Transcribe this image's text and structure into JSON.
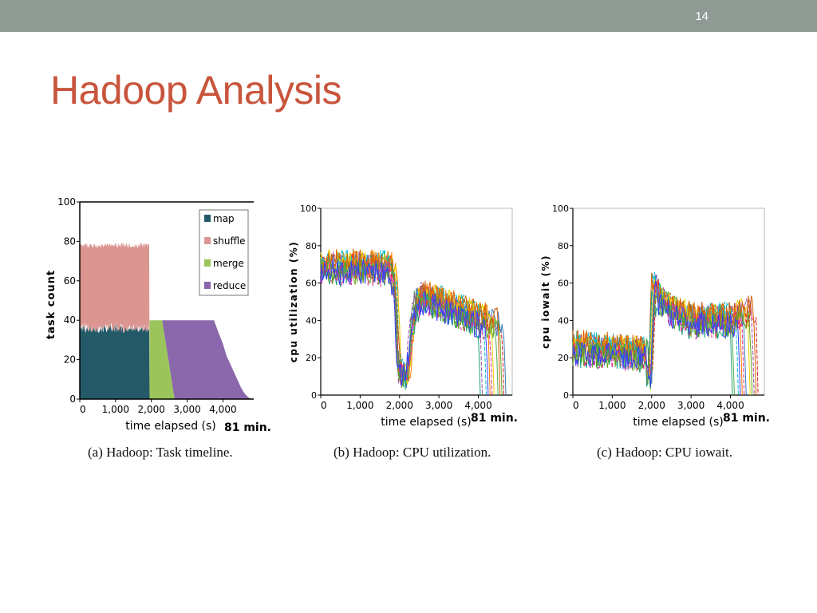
{
  "slide": {
    "number": "14",
    "title": "Hadoop Analysis"
  },
  "colors": {
    "topbar": "#8f9a94",
    "title": "#c8553c",
    "map": "#245a68",
    "shuffle": "#dc9692",
    "merge": "#9bc55a",
    "reduce": "#8a68ab"
  },
  "chart_data": [
    {
      "type": "area",
      "caption": "(a) Hadoop: Task timeline.",
      "xlabel": "time elapsed (s)",
      "ylabel": "task count",
      "x_end_note": "81 min.",
      "xlim": [
        0,
        4860
      ],
      "ylim": [
        0,
        100
      ],
      "x_ticks": [
        "0",
        "1,000",
        "2,000",
        "3,000",
        "4,000"
      ],
      "x_tick_values": [
        0,
        1000,
        2000,
        3000,
        4000
      ],
      "y_ticks": [
        "0",
        "20",
        "40",
        "60",
        "80",
        "100"
      ],
      "y_tick_values": [
        0,
        20,
        40,
        60,
        80,
        100
      ],
      "legend_position": "top-right",
      "series": [
        {
          "name": "map",
          "color": "#245a68",
          "bands": [
            [
              0,
              0,
              36
            ],
            [
              1940,
              0,
              36
            ],
            [
              1950,
              0,
              0
            ]
          ]
        },
        {
          "name": "shuffle",
          "color": "#dc9692",
          "bands": [
            [
              0,
              36,
              78
            ],
            [
              1940,
              36,
              78
            ],
            [
              1950,
              0,
              0
            ]
          ]
        },
        {
          "name": "merge",
          "color": "#9bc55a",
          "bands": [
            [
              1950,
              0,
              40
            ],
            [
              2300,
              0,
              40
            ],
            [
              2650,
              0,
              0
            ]
          ]
        },
        {
          "name": "reduce",
          "color": "#8a68ab",
          "bands": [
            [
              2300,
              40,
              40
            ],
            [
              2650,
              0,
              40
            ],
            [
              3750,
              0,
              40
            ],
            [
              3850,
              0,
              35
            ],
            [
              4000,
              0,
              28
            ],
            [
              4100,
              0,
              22
            ],
            [
              4200,
              0,
              18
            ],
            [
              4300,
              0,
              14
            ],
            [
              4400,
              0,
              10
            ],
            [
              4500,
              0,
              6
            ],
            [
              4600,
              0,
              3
            ],
            [
              4700,
              0,
              1
            ],
            [
              4800,
              0,
              0
            ]
          ]
        }
      ]
    },
    {
      "type": "line",
      "caption": "(b) Hadoop: CPU utilization.",
      "xlabel": "time elapsed (s)",
      "ylabel": "cpu utilization (%)",
      "x_end_note": "81 min.",
      "xlim": [
        0,
        4860
      ],
      "ylim": [
        0,
        100
      ],
      "x_ticks": [
        "0",
        "1,000",
        "2,000",
        "3,000",
        "4,000"
      ],
      "x_tick_values": [
        0,
        1000,
        2000,
        3000,
        4000
      ],
      "y_ticks": [
        "0",
        "20",
        "40",
        "60",
        "80",
        "100"
      ],
      "y_tick_values": [
        0,
        20,
        40,
        60,
        80,
        100
      ],
      "series_colors": [
        "#e41a1c",
        "#377eb8",
        "#4daf4a",
        "#984ea3",
        "#ff7f00",
        "#e6d400",
        "#00bcd4",
        "#d95f02",
        "#1b9e77",
        "#e7298a",
        "#66a61e",
        "#3b3bff"
      ],
      "series_end": [
        4650,
        4700,
        4500,
        4100,
        4300,
        4400,
        4200,
        4550,
        4050,
        4350,
        4600,
        4250
      ],
      "profile": {
        "x": [
          0,
          1800,
          1900,
          2000,
          2200,
          2400,
          2600,
          3500,
          4000,
          4860
        ],
        "y": [
          68,
          68,
          55,
          12,
          10,
          48,
          52,
          45,
          40,
          35
        ]
      }
    },
    {
      "type": "line",
      "caption": "(c) Hadoop: CPU iowait.",
      "xlabel": "time elapsed (s)",
      "ylabel": "cpu iowait (%)",
      "x_end_note": "81 min.",
      "xlim": [
        0,
        4860
      ],
      "ylim": [
        0,
        100
      ],
      "x_ticks": [
        "0",
        "1,000",
        "2,000",
        "3,000",
        "4,000"
      ],
      "x_tick_values": [
        0,
        1000,
        2000,
        3000,
        4000
      ],
      "y_ticks": [
        "0",
        "20",
        "40",
        "60",
        "80",
        "100"
      ],
      "y_tick_values": [
        0,
        20,
        40,
        60,
        80,
        100
      ],
      "series_colors": [
        "#e41a1c",
        "#377eb8",
        "#4daf4a",
        "#984ea3",
        "#ff7f00",
        "#e6d400",
        "#00bcd4",
        "#d95f02",
        "#1b9e77",
        "#e7298a",
        "#66a61e",
        "#3b3bff"
      ],
      "series_end": [
        4700,
        4400,
        4100,
        4600,
        4300,
        4500,
        4200,
        4650,
        4050,
        4350,
        4550,
        4250
      ],
      "profile": {
        "x": [
          0,
          1850,
          1950,
          2050,
          2150,
          2500,
          3000,
          3500,
          4000,
          4860
        ],
        "y": [
          25,
          22,
          8,
          60,
          52,
          45,
          40,
          40,
          40,
          45
        ]
      }
    }
  ]
}
